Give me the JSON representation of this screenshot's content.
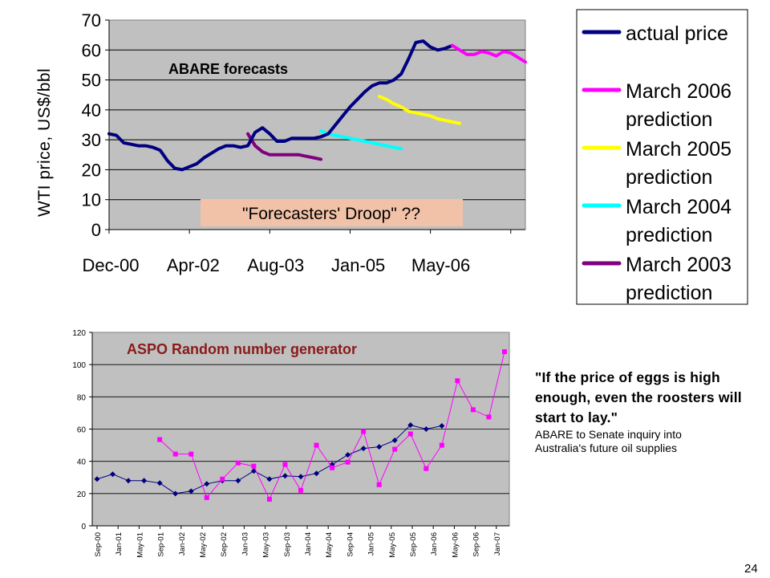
{
  "page_number": "24",
  "quote": {
    "text": "\"If the price of eggs is high enough, even the roosters will start to lay.\"",
    "source_line1": "ABARE to Senate inquiry into",
    "source_line2": "Australia's future oil supplies"
  },
  "chart_data": [
    {
      "type": "line",
      "annotation_title": "ABARE forecasts",
      "callout": "\"Forecasters' Droop\" ??",
      "ylabel": "WTI price, US$/bbl",
      "xlabel": "",
      "ylim": [
        0,
        70
      ],
      "yticks": [
        0,
        10,
        20,
        30,
        40,
        50,
        60,
        70
      ],
      "xticks": [
        "Dec-00",
        "Apr-02",
        "Aug-03",
        "Jan-05",
        "May-06"
      ],
      "x_is_month_index_from_Dec-00": true,
      "plot_background": "#c0c0c0",
      "grid": "horizontal",
      "legend_position": "right",
      "series": [
        {
          "name": "actual price",
          "color": "#000080",
          "points": [
            [
              0,
              32
            ],
            [
              1,
              31.5
            ],
            [
              2,
              29
            ],
            [
              3,
              28.5
            ],
            [
              4,
              28
            ],
            [
              5,
              28
            ],
            [
              6,
              27.5
            ],
            [
              7,
              26.5
            ],
            [
              8,
              23
            ],
            [
              9,
              20.5
            ],
            [
              10,
              20
            ],
            [
              11,
              21
            ],
            [
              12,
              22
            ],
            [
              13,
              24
            ],
            [
              14,
              25.5
            ],
            [
              15,
              27
            ],
            [
              16,
              28
            ],
            [
              17,
              28
            ],
            [
              18,
              27.5
            ],
            [
              19,
              28
            ],
            [
              20,
              32.5
            ],
            [
              21,
              34
            ],
            [
              22,
              32
            ],
            [
              23,
              29.5
            ],
            [
              24,
              29.5
            ],
            [
              25,
              30.5
            ],
            [
              26,
              30.5
            ],
            [
              27,
              30.5
            ],
            [
              28,
              30.5
            ],
            [
              29,
              31
            ],
            [
              30,
              32
            ],
            [
              31,
              35
            ],
            [
              32,
              38
            ],
            [
              33,
              41
            ],
            [
              34,
              43.5
            ],
            [
              35,
              46
            ],
            [
              36,
              48
            ],
            [
              37,
              49
            ],
            [
              38,
              49
            ],
            [
              39,
              50
            ],
            [
              40,
              52
            ],
            [
              41,
              57
            ],
            [
              42,
              62.5
            ],
            [
              43,
              63
            ],
            [
              44,
              61
            ],
            [
              45,
              60
            ],
            [
              46,
              60.5
            ],
            [
              47,
              61.5
            ]
          ]
        },
        {
          "name": "March 2006 prediction",
          "color": "#ff00ff",
          "points": [
            [
              47,
              61.5
            ],
            [
              48,
              60
            ],
            [
              49,
              58.5
            ],
            [
              50,
              58.5
            ],
            [
              51,
              59.5
            ],
            [
              52,
              59
            ],
            [
              53,
              58
            ],
            [
              54,
              59.5
            ],
            [
              55,
              59
            ],
            [
              56,
              57.5
            ],
            [
              57,
              56
            ]
          ]
        },
        {
          "name": "March 2005 prediction",
          "color": "#ffff00",
          "points": [
            [
              37,
              44.5
            ],
            [
              38,
              43.5
            ],
            [
              39,
              42
            ],
            [
              40,
              41
            ],
            [
              41,
              39.5
            ],
            [
              42,
              39
            ],
            [
              43,
              38.5
            ],
            [
              44,
              38
            ],
            [
              45,
              37
            ],
            [
              46,
              36.5
            ],
            [
              47,
              36
            ],
            [
              48,
              35.5
            ]
          ]
        },
        {
          "name": "March 2004 prediction",
          "color": "#00ffff",
          "points": [
            [
              29,
              33
            ],
            [
              30,
              32
            ],
            [
              31,
              31.5
            ],
            [
              32,
              31
            ],
            [
              33,
              30.5
            ],
            [
              34,
              30
            ],
            [
              35,
              29.5
            ],
            [
              36,
              29
            ],
            [
              37,
              28.5
            ],
            [
              38,
              28
            ],
            [
              39,
              27.5
            ],
            [
              40,
              27
            ]
          ]
        },
        {
          "name": "March 2003 prediction",
          "color": "#800080",
          "points": [
            [
              19,
              32
            ],
            [
              20,
              28
            ],
            [
              21,
              26
            ],
            [
              22,
              25
            ],
            [
              23,
              25
            ],
            [
              24,
              25
            ],
            [
              25,
              25
            ],
            [
              26,
              25
            ],
            [
              27,
              24.5
            ],
            [
              28,
              24
            ],
            [
              29,
              23.5
            ]
          ]
        }
      ]
    },
    {
      "type": "line",
      "title": "ASPO Random number generator",
      "xlabel": "",
      "ylabel": "",
      "ylim": [
        0,
        120
      ],
      "yticks": [
        0,
        20,
        40,
        60,
        80,
        100,
        120
      ],
      "categories": [
        "Sep-00",
        "Jan-01",
        "May-01",
        "Sep-01",
        "Jan-02",
        "May-02",
        "Sep-02",
        "Jan-03",
        "May-03",
        "Sep-03",
        "Jan-04",
        "May-04",
        "Sep-04",
        "Jan-05",
        "May-05",
        "Sep-05",
        "Jan-06",
        "May-06",
        "Sep-06",
        "Jan-07"
      ],
      "plot_background": "#c0c0c0",
      "grid": "horizontal",
      "legend": "none",
      "series": [
        {
          "name": "",
          "color": "#000080",
          "marker": "diamond",
          "points": [
            [
              0,
              29
            ],
            [
              1,
              32
            ],
            [
              2,
              28
            ],
            [
              3,
              28
            ],
            [
              4,
              26.5
            ],
            [
              5,
              20
            ],
            [
              6,
              21.5
            ],
            [
              7,
              26
            ],
            [
              8,
              28
            ],
            [
              9,
              28
            ],
            [
              10,
              34
            ],
            [
              11,
              29
            ],
            [
              12,
              31
            ],
            [
              13,
              30.5
            ],
            [
              14,
              32.5
            ],
            [
              15,
              38
            ],
            [
              16,
              44
            ],
            [
              17,
              48
            ],
            [
              18,
              49
            ],
            [
              19,
              53
            ],
            [
              20,
              62.5
            ],
            [
              21,
              60
            ],
            [
              22,
              62
            ]
          ]
        },
        {
          "name": "",
          "color": "#ff00ff",
          "marker": "square",
          "points": [
            [
              4,
              53.5
            ],
            [
              5,
              44.5
            ],
            [
              6,
              44.5
            ],
            [
              7,
              17.5
            ],
            [
              8,
              29
            ],
            [
              9,
              39
            ],
            [
              10,
              37
            ],
            [
              11,
              16.5
            ],
            [
              12,
              38
            ],
            [
              13,
              22
            ],
            [
              14,
              50
            ],
            [
              15,
              36
            ],
            [
              16,
              39.5
            ],
            [
              17,
              58.5
            ],
            [
              18,
              25.5
            ],
            [
              19,
              47.5
            ],
            [
              20,
              57
            ],
            [
              21,
              35.5
            ],
            [
              22,
              50
            ],
            [
              23,
              90
            ],
            [
              24,
              72
            ],
            [
              25,
              67.5
            ],
            [
              26,
              108
            ]
          ]
        }
      ]
    }
  ]
}
